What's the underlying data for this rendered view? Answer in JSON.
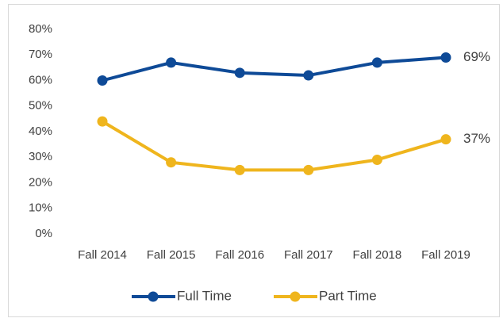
{
  "chart_data": {
    "type": "line",
    "categories": [
      "Fall 2014",
      "Fall 2015",
      "Fall 2016",
      "Fall 2017",
      "Fall 2018",
      "Fall 2019"
    ],
    "series": [
      {
        "name": "Full Time",
        "color": "#0e4a97",
        "values": [
          60,
          67,
          63,
          62,
          67,
          69
        ],
        "value_labels": [
          null,
          null,
          null,
          null,
          null,
          "69%"
        ]
      },
      {
        "name": "Part Time",
        "color": "#efb51d",
        "values": [
          44,
          28,
          25,
          25,
          29,
          37
        ],
        "value_labels": [
          null,
          null,
          null,
          null,
          null,
          "37%"
        ]
      }
    ],
    "ylim": [
      0,
      80
    ],
    "yticks": [
      {
        "value": 0,
        "label": "0%"
      },
      {
        "value": 10,
        "label": "10%"
      },
      {
        "value": 20,
        "label": "20%"
      },
      {
        "value": 30,
        "label": "30%"
      },
      {
        "value": 40,
        "label": "40%"
      },
      {
        "value": 50,
        "label": "50%"
      },
      {
        "value": 60,
        "label": "60%"
      },
      {
        "value": 70,
        "label": "70%"
      },
      {
        "value": 80,
        "label": "80%"
      }
    ],
    "grid": false,
    "legend": "bottom"
  }
}
